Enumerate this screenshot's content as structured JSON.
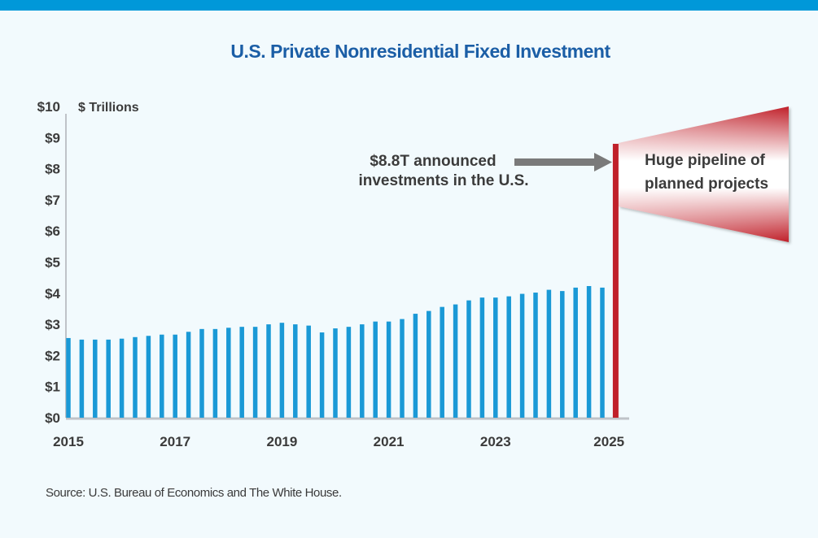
{
  "colors": {
    "top_bar": "#0098d9",
    "title": "#1b5ea6",
    "bar": "#1a99d6",
    "announced_bar": "#c0202a",
    "arrow": "#7a7a7a",
    "axis": "#bfc3c8",
    "text": "#3b3b3b"
  },
  "source": "Source: U.S. Bureau of Economics and The White House.",
  "chart_data": {
    "type": "bar",
    "title": "U.S. Private Nonresidential Fixed Investment",
    "ylabel": "$ Trillions",
    "xlabel": "",
    "ylim": [
      0,
      10
    ],
    "yticks": [
      0,
      1,
      2,
      3,
      4,
      5,
      6,
      7,
      8,
      9,
      10
    ],
    "ytick_labels": [
      "$0",
      "$1",
      "$2",
      "$3",
      "$4",
      "$5",
      "$6",
      "$7",
      "$8",
      "$9",
      "$10"
    ],
    "xtick_labels": [
      "2015",
      "2017",
      "2019",
      "2021",
      "2023",
      "2025"
    ],
    "grid": false,
    "frequency": "quarterly",
    "categories": [
      "2015Q1",
      "2015Q2",
      "2015Q3",
      "2015Q4",
      "2016Q1",
      "2016Q2",
      "2016Q3",
      "2016Q4",
      "2017Q1",
      "2017Q2",
      "2017Q3",
      "2017Q4",
      "2018Q1",
      "2018Q2",
      "2018Q3",
      "2018Q4",
      "2019Q1",
      "2019Q2",
      "2019Q3",
      "2019Q4",
      "2020Q1",
      "2020Q2",
      "2020Q3",
      "2020Q4",
      "2021Q1",
      "2021Q2",
      "2021Q3",
      "2021Q4",
      "2022Q1",
      "2022Q2",
      "2022Q3",
      "2022Q4",
      "2023Q1",
      "2023Q2",
      "2023Q3",
      "2023Q4",
      "2024Q1",
      "2024Q2",
      "2024Q3",
      "2024Q4",
      "2025Q1"
    ],
    "series": [
      {
        "name": "Private Nonresidential Fixed Investment",
        "values": [
          2.56,
          2.51,
          2.51,
          2.51,
          2.54,
          2.59,
          2.63,
          2.67,
          2.67,
          2.76,
          2.85,
          2.85,
          2.89,
          2.92,
          2.92,
          3.0,
          3.05,
          3.0,
          2.96,
          2.74,
          2.87,
          2.92,
          3.0,
          3.09,
          3.09,
          3.17,
          3.34,
          3.43,
          3.56,
          3.64,
          3.77,
          3.86,
          3.86,
          3.9,
          3.98,
          4.02,
          4.11,
          4.07,
          4.18,
          4.23,
          4.18
        ]
      }
    ],
    "announced": {
      "label": "Announced investments",
      "value": 8.8
    },
    "annotations": {
      "announced_line1": "$8.8T announced",
      "announced_line2": "investments in the U.S.",
      "pipeline_line1": "Huge pipeline of",
      "pipeline_line2": "planned projects"
    }
  }
}
